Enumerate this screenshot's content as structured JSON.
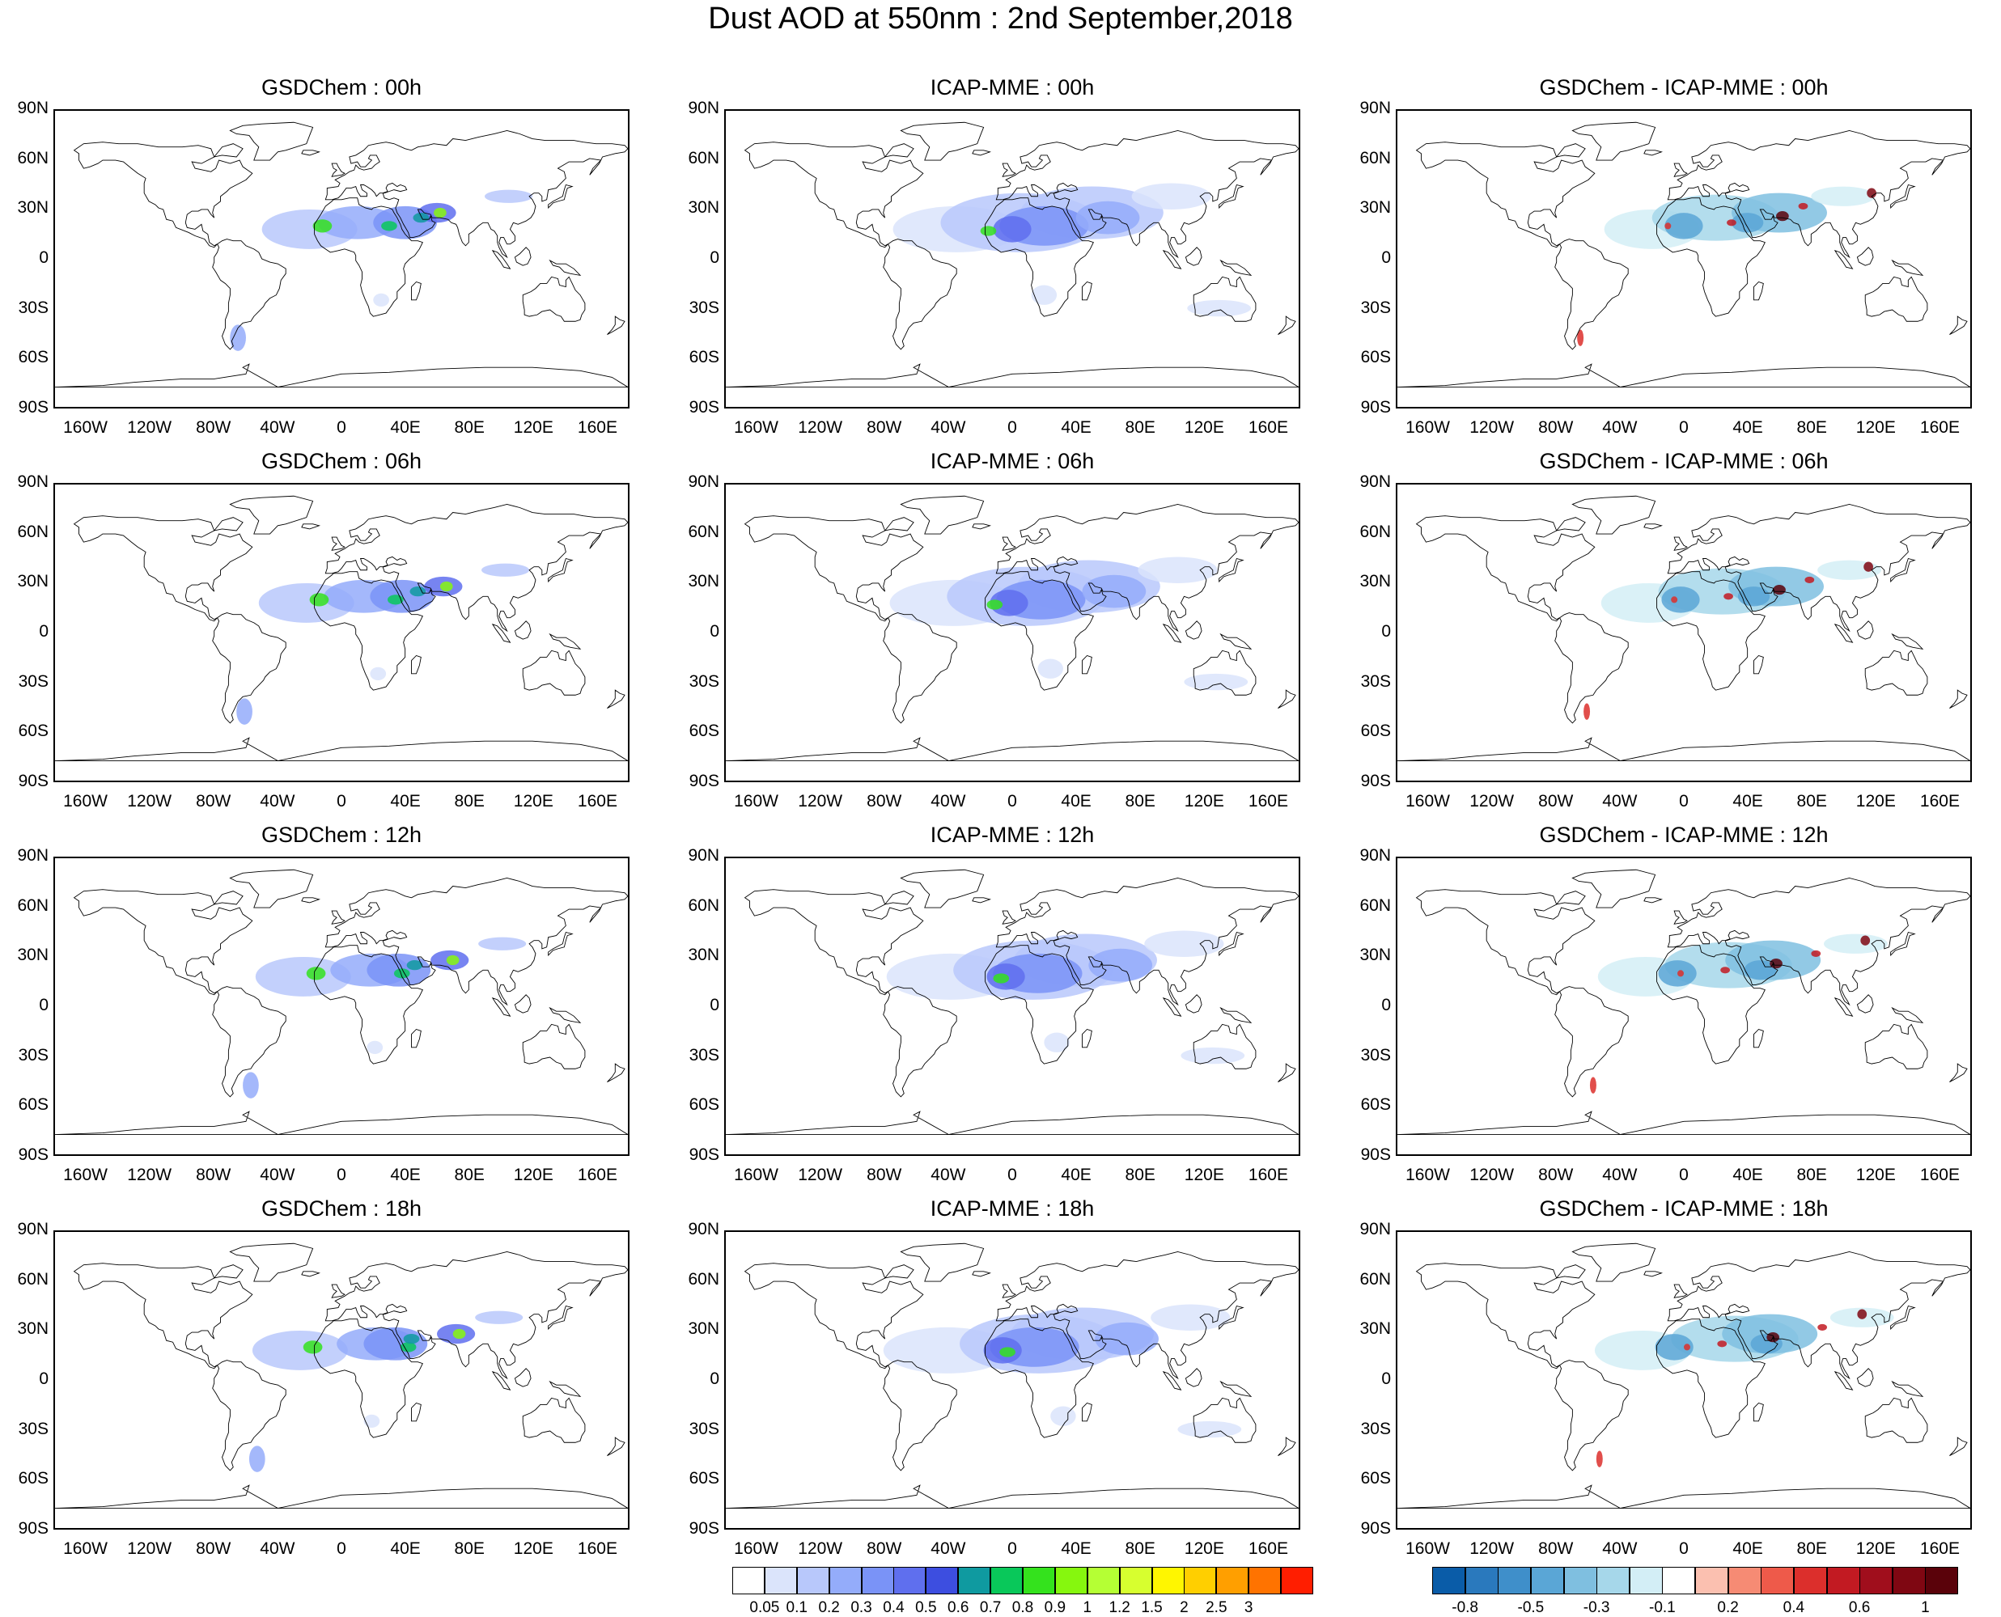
{
  "title": "Dust AOD at 550nm : 2nd September,2018",
  "panel_titles": [
    [
      "GSDChem : 00h",
      "ICAP-MME : 00h",
      "GSDChem - ICAP-MME : 00h"
    ],
    [
      "GSDChem : 06h",
      "ICAP-MME : 06h",
      "GSDChem - ICAP-MME : 06h"
    ],
    [
      "GSDChem : 12h",
      "ICAP-MME : 12h",
      "GSDChem - ICAP-MME : 12h"
    ],
    [
      "GSDChem : 18h",
      "ICAP-MME : 18h",
      "GSDChem - ICAP-MME : 18h"
    ]
  ],
  "y_ticks": [
    "90N",
    "60N",
    "30N",
    "0",
    "30S",
    "60S",
    "90S"
  ],
  "x_ticks": [
    "160W",
    "120W",
    "80W",
    "40W",
    "0",
    "40E",
    "80E",
    "120E",
    "160E"
  ],
  "colorbars": {
    "aod": {
      "labels": [
        "0.05",
        "0.1",
        "0.2",
        "0.3",
        "0.4",
        "0.5",
        "0.6",
        "0.7",
        "0.8",
        "0.9",
        "1",
        "1.2",
        "1.5",
        "2",
        "2.5",
        "3"
      ],
      "colors": [
        "#ffffff",
        "#dbe4fb",
        "#b8c8fb",
        "#94acfa",
        "#7a93f7",
        "#5f6fee",
        "#3d4ee0",
        "#0f9aa0",
        "#09c85a",
        "#34e21d",
        "#86f70e",
        "#b5ff34",
        "#d7ff2f",
        "#fff600",
        "#ffcf00",
        "#ff9f00",
        "#ff7300",
        "#ff1e00"
      ]
    },
    "diff": {
      "labels": [
        "-0.8",
        "-0.5",
        "-0.3",
        "-0.1",
        "0.2",
        "0.4",
        "0.6",
        "1"
      ],
      "colors": [
        "#0a5ca8",
        "#2a79bd",
        "#3f8fca",
        "#5aa6d6",
        "#7fbfe0",
        "#a6d7ea",
        "#d3eef6",
        "#ffffff",
        "#fbc0b0",
        "#f68b74",
        "#ee5a4a",
        "#dc2f2c",
        "#c21a22",
        "#a00e1c",
        "#7f0712",
        "#5a020a"
      ]
    }
  },
  "chart_data": [
    {
      "type": "heatmap",
      "title": "GSDChem : 00h",
      "x_range": [
        "180W",
        "180E"
      ],
      "y_range": [
        "90S",
        "90N"
      ]
    },
    {
      "type": "heatmap",
      "title": "ICAP-MME : 00h",
      "x_range": [
        "180W",
        "180E"
      ],
      "y_range": [
        "90S",
        "90N"
      ]
    },
    {
      "type": "heatmap",
      "title": "GSDChem - ICAP-MME : 00h",
      "x_range": [
        "180W",
        "180E"
      ],
      "y_range": [
        "90S",
        "90N"
      ]
    },
    {
      "type": "heatmap",
      "title": "GSDChem : 06h",
      "x_range": [
        "180W",
        "180E"
      ],
      "y_range": [
        "90S",
        "90N"
      ]
    },
    {
      "type": "heatmap",
      "title": "ICAP-MME : 06h",
      "x_range": [
        "180W",
        "180E"
      ],
      "y_range": [
        "90S",
        "90N"
      ]
    },
    {
      "type": "heatmap",
      "title": "GSDChem - ICAP-MME : 06h",
      "x_range": [
        "180W",
        "180E"
      ],
      "y_range": [
        "90S",
        "90N"
      ]
    },
    {
      "type": "heatmap",
      "title": "GSDChem : 12h",
      "x_range": [
        "180W",
        "180E"
      ],
      "y_range": [
        "90S",
        "90N"
      ]
    },
    {
      "type": "heatmap",
      "title": "ICAP-MME : 12h",
      "x_range": [
        "180W",
        "180E"
      ],
      "y_range": [
        "90S",
        "90N"
      ]
    },
    {
      "type": "heatmap",
      "title": "GSDChem - ICAP-MME : 12h",
      "x_range": [
        "180W",
        "180E"
      ],
      "y_range": [
        "90S",
        "90N"
      ]
    },
    {
      "type": "heatmap",
      "title": "GSDChem : 18h",
      "x_range": [
        "180W",
        "180E"
      ],
      "y_range": [
        "90S",
        "90N"
      ]
    },
    {
      "type": "heatmap",
      "title": "ICAP-MME : 18h",
      "x_range": [
        "180W",
        "180E"
      ],
      "y_range": [
        "90S",
        "90N"
      ]
    },
    {
      "type": "heatmap",
      "title": "GSDChem - ICAP-MME : 18h",
      "x_range": [
        "180W",
        "180E"
      ],
      "y_range": [
        "90S",
        "90N"
      ]
    }
  ]
}
